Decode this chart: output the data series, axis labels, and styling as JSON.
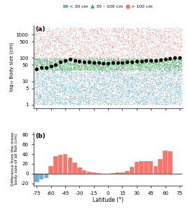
{
  "title_a": "(a)",
  "title_b": "(b)",
  "xlabel": "Latitude (°)",
  "ylabel_a": "log₁₀ Body size (cm)",
  "ylabel_b": "Difference from the mean\nbody size of all fish (cm)",
  "lat_bins": [
    -75,
    -70,
    -65,
    -60,
    -55,
    -50,
    -45,
    -40,
    -35,
    -30,
    -25,
    -20,
    -15,
    -10,
    -5,
    0,
    5,
    10,
    15,
    20,
    25,
    30,
    35,
    40,
    45,
    50,
    55,
    60,
    65,
    70,
    75
  ],
  "xticks": [
    -75,
    -60,
    -45,
    -30,
    -15,
    0,
    15,
    30,
    45,
    60,
    75
  ],
  "yticks_a": [
    1,
    5,
    10,
    50,
    100,
    500,
    1000
  ],
  "ylim_a": [
    0.7,
    2500
  ],
  "ylim_b": [
    -25,
    85
  ],
  "yticks_b": [
    -20,
    0,
    20,
    40,
    60,
    80
  ],
  "color_small": "#6baed6",
  "color_medium": "#41ab5d",
  "color_large": "#f4756a",
  "color_median": "#111111",
  "bar_values": [
    -18,
    -12,
    -9,
    15,
    36,
    38,
    40,
    33,
    23,
    13,
    7,
    4,
    2,
    1,
    0,
    0,
    1,
    2,
    3,
    5,
    14,
    24,
    25,
    25,
    25,
    16,
    30,
    47,
    46,
    0,
    0
  ],
  "median_values": [
    35,
    38,
    40,
    45,
    52,
    68,
    78,
    88,
    80,
    75,
    70,
    67,
    65,
    62,
    60,
    60,
    62,
    63,
    65,
    67,
    70,
    72,
    75,
    78,
    80,
    80,
    82,
    88,
    95,
    100,
    100
  ],
  "legend_labels": [
    "< 30 cm",
    "30 – 100 cm",
    "> 100 cm"
  ],
  "background_color": "#ffffff"
}
